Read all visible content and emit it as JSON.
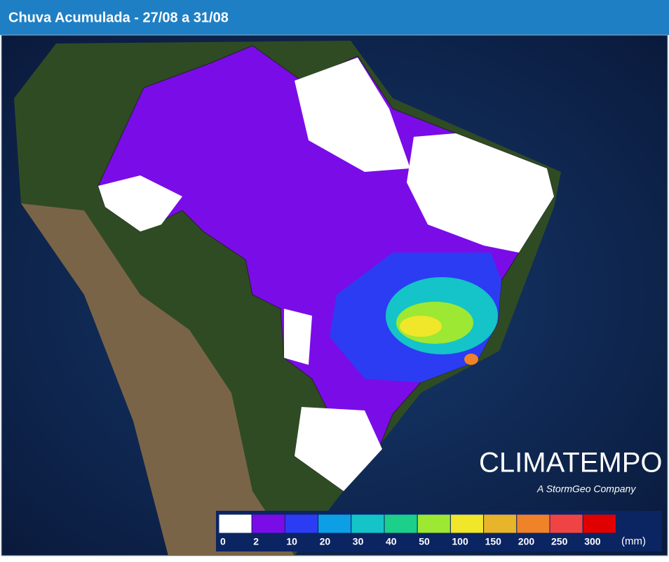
{
  "header": {
    "title": "Chuva Acumulada - 27/08 a 31/08"
  },
  "logo": {
    "name": "CLIMATEMPO",
    "tagline": "A StormGeo Company"
  },
  "legend": {
    "unit": "(mm)",
    "items": [
      {
        "value": 0,
        "color": "#ffffff"
      },
      {
        "value": 2,
        "color": "#7a0ce8"
      },
      {
        "value": 10,
        "color": "#2c3cf2"
      },
      {
        "value": 20,
        "color": "#0c9fe6"
      },
      {
        "value": 30,
        "color": "#14c4c8"
      },
      {
        "value": 40,
        "color": "#1ccf8a"
      },
      {
        "value": 50,
        "color": "#9de832"
      },
      {
        "value": 100,
        "color": "#f0e62a"
      },
      {
        "value": 150,
        "color": "#e8b42a"
      },
      {
        "value": 200,
        "color": "#f0822a"
      },
      {
        "value": 250,
        "color": "#f04444"
      },
      {
        "value": 300,
        "color": "#e00000"
      }
    ]
  }
}
